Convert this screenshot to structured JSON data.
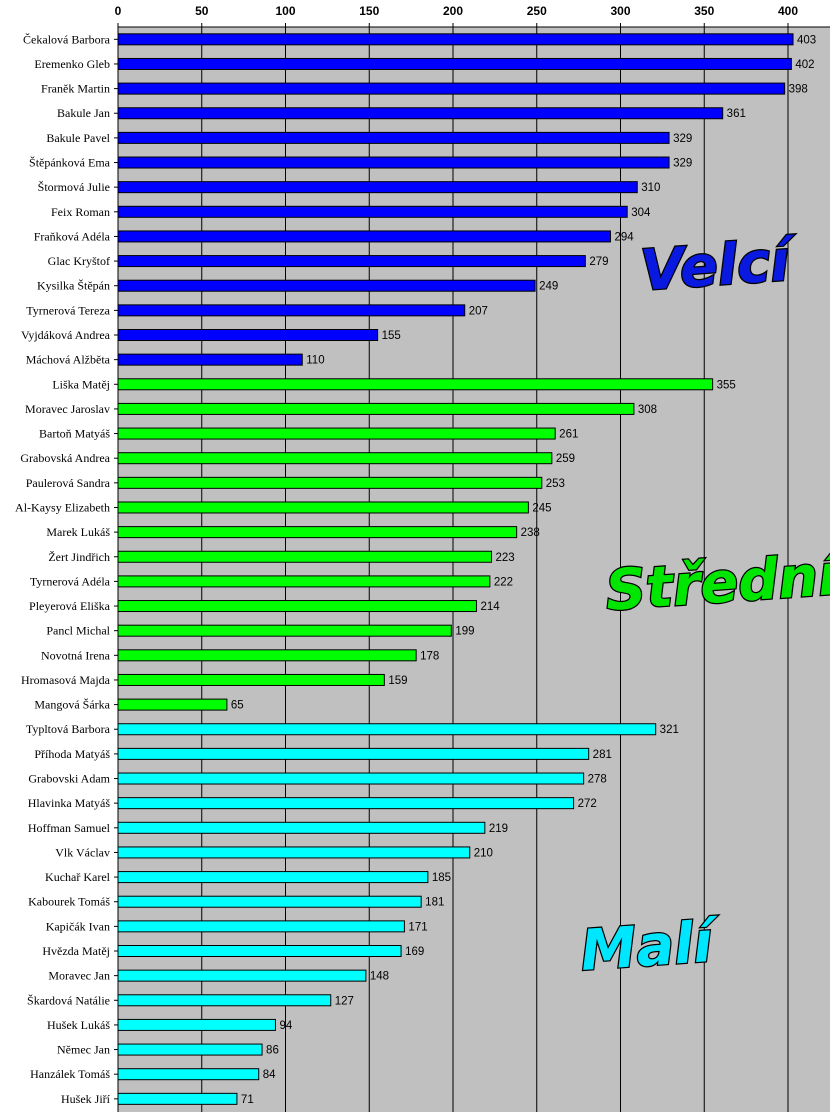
{
  "chart_data": {
    "type": "bar",
    "orientation": "horizontal",
    "xlim": [
      0,
      425
    ],
    "xticks": [
      0,
      50,
      100,
      150,
      200,
      250,
      300,
      350,
      400
    ],
    "grid": true,
    "plot_background": "#c0c0c0",
    "groups": [
      {
        "name": "Velcí",
        "color": "#0000ff",
        "label_color": "#0a19e0",
        "categories": [
          "Čekalová Barbora",
          "Eremenko Gleb",
          "Franěk Martin",
          "Bakule Jan",
          "Bakule Pavel",
          "Štěpánková Ema",
          "Štormová Julie",
          "Feix Roman",
          "Fraňková Adéla",
          "Glac Kryštof",
          "Kysilka Štěpán",
          "Tyrnerová Tereza",
          "Vyjdáková Andrea",
          "Máchová Alžběta"
        ],
        "values": [
          403,
          402,
          398,
          361,
          329,
          329,
          310,
          304,
          294,
          279,
          249,
          207,
          155,
          110
        ]
      },
      {
        "name": "Střední",
        "color": "#00ff00",
        "label_color": "#00e600",
        "categories": [
          "Liška Matěj",
          "Moravec Jaroslav",
          "Bartoň Matyáš",
          "Grabovská Andrea",
          "Paulerová Sandra",
          "Al-Kaysy Elizabeth",
          "Marek Lukáš",
          "Žert Jindřich",
          "Tyrnerová Adéla",
          "Pleyerová Eliška",
          "Pancl Michal",
          "Novotná Irena",
          "Hromasová Majda",
          "Mangová Šárka"
        ],
        "values": [
          355,
          308,
          261,
          259,
          253,
          245,
          238,
          223,
          222,
          214,
          199,
          178,
          159,
          65
        ]
      },
      {
        "name": "Malí",
        "color": "#00ffff",
        "label_color": "#00e6ff",
        "categories": [
          "Typltová Barbora",
          "Příhoda Matyáš",
          "Grabovski Adam",
          "Hlavinka Matyáš",
          "Hoffman Samuel",
          "Vlk Václav",
          "Kuchař Karel",
          "Kabourek Tomáš",
          "Kapičák Ivan",
          "Hvězda Matěj",
          "Moravec Jan",
          "Škardová Natálie",
          "Hušek Lukáš",
          "Němec Jan",
          "Hanzálek Tomáš",
          "Hušek Jiří"
        ],
        "values": [
          321,
          281,
          278,
          272,
          219,
          210,
          185,
          181,
          171,
          169,
          148,
          127,
          94,
          86,
          84,
          71
        ]
      }
    ]
  }
}
